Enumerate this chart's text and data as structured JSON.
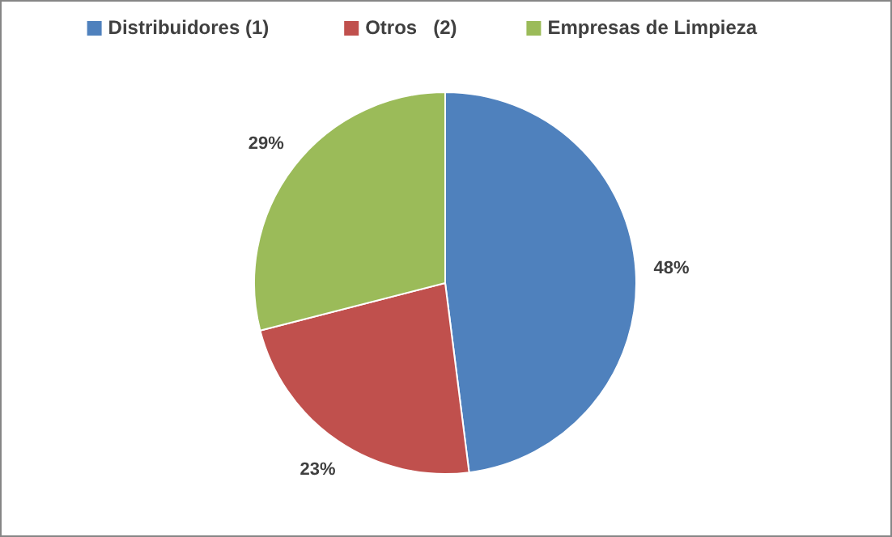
{
  "chart_data": {
    "type": "pie",
    "categories": [
      "Distribuidores (1)",
      "Otros   (2)",
      "Empresas de Limpieza"
    ],
    "values": [
      48,
      23,
      29
    ],
    "colors": [
      "#4f81bd",
      "#c0504d",
      "#9bbb59"
    ],
    "value_labels": [
      "48%",
      "23%",
      "29%"
    ],
    "legend": "top"
  }
}
